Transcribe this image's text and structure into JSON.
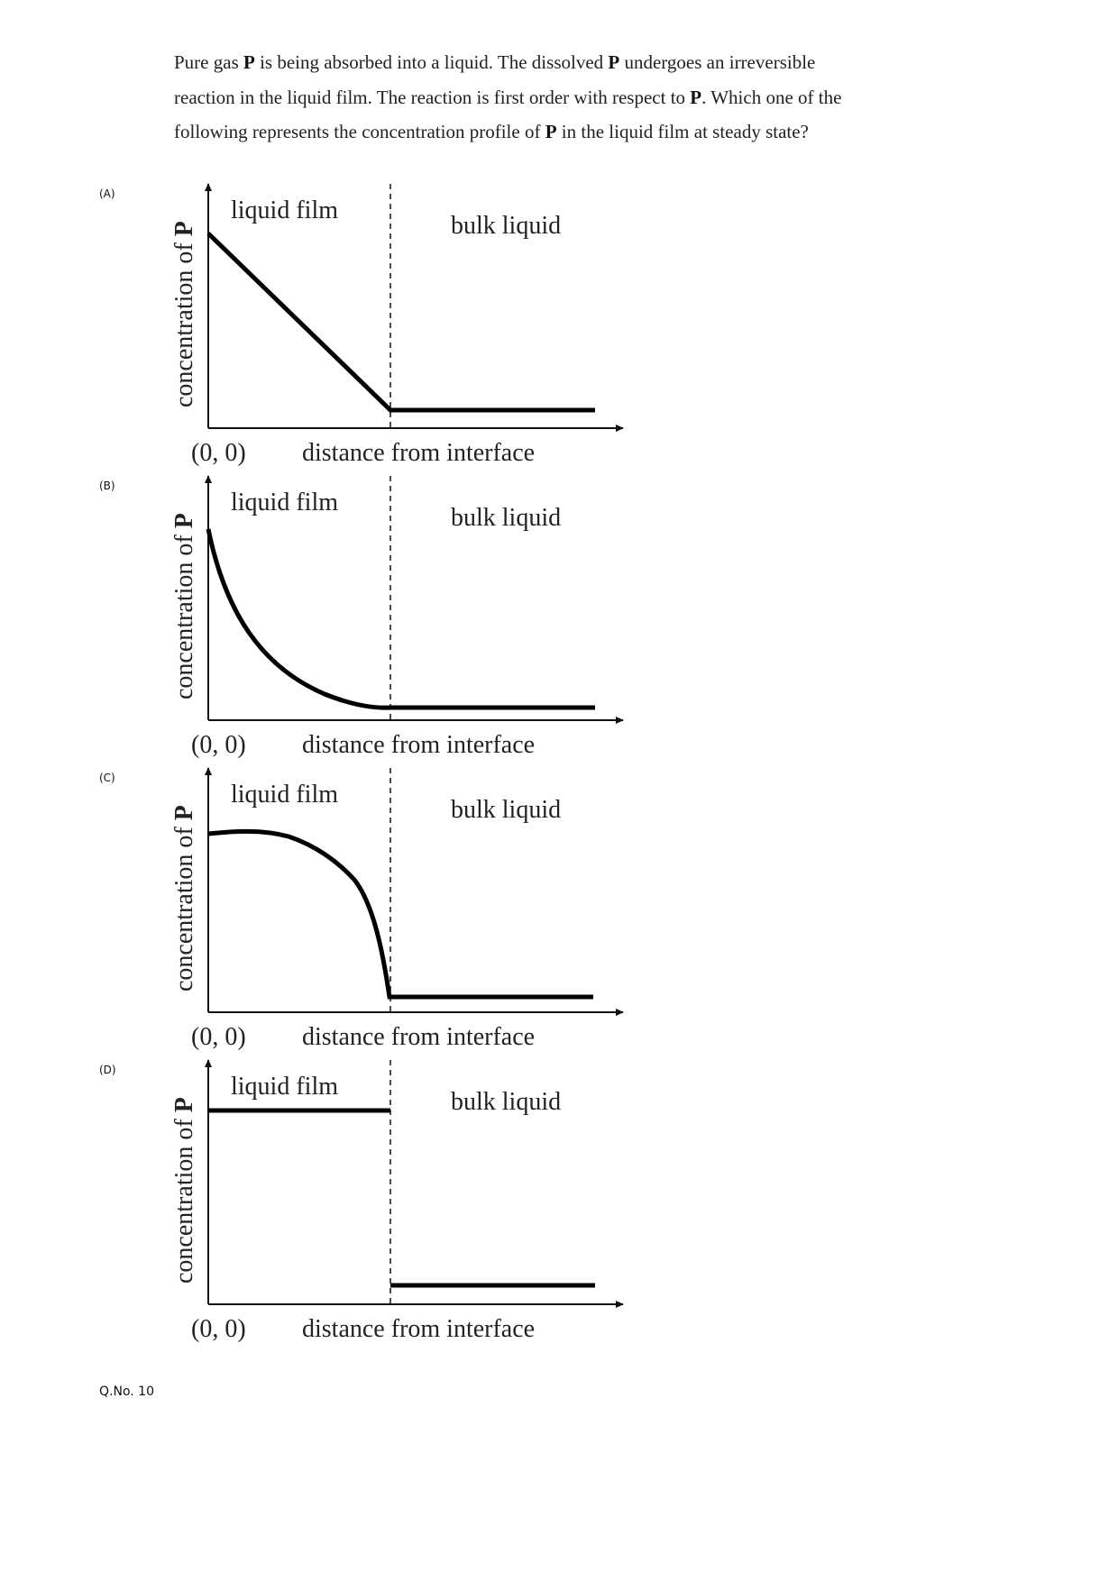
{
  "question": {
    "seg1": "Pure gas ",
    "p1": "P",
    "seg2": " is being absorbed into a liquid. The dissolved ",
    "p2": "P",
    "seg3": " undergoes an irreversible reaction in the liquid film. The reaction is first order with respect to ",
    "p3": "P",
    "seg4": ". Which one of the following represents the concentration profile of ",
    "p4": "P",
    "seg5": " in the liquid film at steady state?"
  },
  "options": [
    {
      "letter": "(A)",
      "profile": "linear-decrease"
    },
    {
      "letter": "(B)",
      "profile": "concave-exponential-decay"
    },
    {
      "letter": "(C)",
      "profile": "convex-decrease"
    },
    {
      "letter": "(D)",
      "profile": "constant-then-step-drop"
    }
  ],
  "diagram_labels": {
    "region_film": "liquid film",
    "region_bulk": "bulk liquid",
    "origin": "(0, 0)",
    "xlabel": "distance from interface",
    "ylabel_text": "concentration of ",
    "ylabel_bold": "P"
  },
  "footer": {
    "qno": "Q.No. 10"
  }
}
